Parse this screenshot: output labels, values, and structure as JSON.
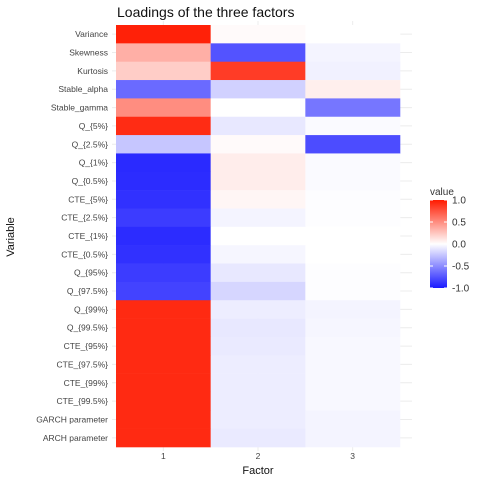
{
  "chart_data": {
    "type": "heatmap",
    "title": "Loadings of the three factors",
    "xlabel": "Factor",
    "ylabel": "Variable",
    "x": [
      "1",
      "2",
      "3"
    ],
    "y": [
      "Variance",
      "Skewness",
      "Kurtosis",
      "Stable_alpha",
      "Stable_gamma",
      "Q_{5%}",
      "Q_{2.5%}",
      "Q_{1%}",
      "Q_{0.5%}",
      "CTE_{5%}",
      "CTE_{2.5%}",
      "CTE_{1%}",
      "CTE_{0.5%}",
      "Q_{95%}",
      "Q_{97.5%}",
      "Q_{99%}",
      "Q_{99.5%}",
      "CTE_{95%}",
      "CTE_{97.5%}",
      "CTE_{99%}",
      "CTE_{99.5%}",
      "GARCH parameter",
      "ARCH parameter"
    ],
    "values": [
      [
        0.97,
        0.02,
        0.0
      ],
      [
        0.35,
        -0.75,
        -0.05
      ],
      [
        0.22,
        0.85,
        -0.06
      ],
      [
        -0.65,
        -0.2,
        0.07
      ],
      [
        0.5,
        0.0,
        -0.6
      ],
      [
        0.92,
        -0.1,
        -0.02
      ],
      [
        -0.25,
        0.02,
        -0.78
      ],
      [
        -0.93,
        0.08,
        -0.02
      ],
      [
        -0.92,
        0.08,
        -0.02
      ],
      [
        -0.9,
        0.04,
        -0.01
      ],
      [
        -0.85,
        -0.05,
        -0.01
      ],
      [
        -0.92,
        0.0,
        0.0
      ],
      [
        -0.9,
        -0.04,
        0.0
      ],
      [
        -0.85,
        -0.1,
        -0.01
      ],
      [
        -0.82,
        -0.18,
        -0.01
      ],
      [
        0.93,
        -0.08,
        -0.05
      ],
      [
        0.93,
        -0.1,
        -0.04
      ],
      [
        0.93,
        -0.09,
        -0.03
      ],
      [
        0.93,
        -0.08,
        -0.03
      ],
      [
        0.93,
        -0.08,
        -0.03
      ],
      [
        0.93,
        -0.08,
        -0.03
      ],
      [
        0.93,
        -0.08,
        -0.05
      ],
      [
        0.93,
        -0.09,
        -0.05
      ]
    ],
    "legend": {
      "title": "value",
      "ticks": [
        1.0,
        0.5,
        0.0,
        -0.5,
        -1.0
      ],
      "tick_labels": [
        "1.0",
        "0.5",
        "0.0",
        "-0.5",
        "-1.0"
      ],
      "position": "right"
    },
    "colors": {
      "low": "#1a1aff",
      "mid": "#ffffff",
      "high": "#ff1a00"
    },
    "vlim": [
      -1.0,
      1.0
    ]
  }
}
